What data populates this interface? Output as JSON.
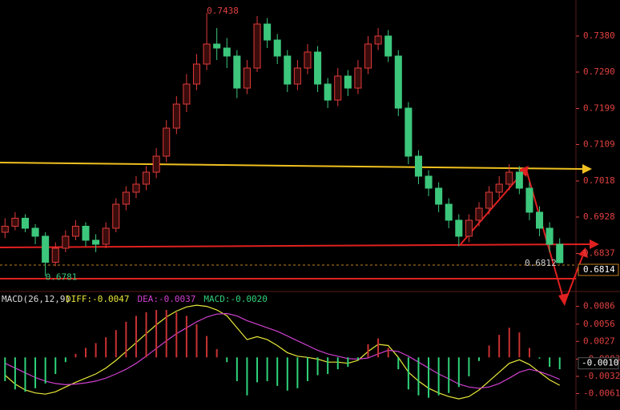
{
  "chart_data": [
    {
      "type": "candlestick",
      "up_color": "#e03a3a",
      "down_color": "#3cc77c",
      "ylim": [
        0.675,
        0.747
      ],
      "yticks": [
        {
          "value": 0.738,
          "label": "0.7380"
        },
        {
          "value": 0.729,
          "label": "0.7290"
        },
        0.7199,
        0.7109,
        0.7018,
        0.6928,
        0.6837
      ],
      "open": [
        0.689,
        0.6905,
        0.6925,
        0.69,
        0.688,
        0.6815,
        0.685,
        0.688,
        0.6905,
        0.687,
        0.686,
        0.69,
        0.696,
        0.699,
        0.701,
        0.704,
        0.708,
        0.715,
        0.721,
        0.726,
        0.731,
        0.736,
        0.735,
        0.733,
        0.725,
        0.73,
        0.741,
        0.737,
        0.733,
        0.726,
        0.73,
        0.734,
        0.726,
        0.722,
        0.728,
        0.725,
        0.73,
        0.736,
        0.738,
        0.733,
        0.72,
        0.708,
        0.703,
        0.7,
        0.696,
        0.692,
        0.688,
        0.692,
        0.695,
        0.699,
        0.701,
        0.704,
        0.7,
        0.694,
        0.69,
        0.686
      ],
      "high": [
        0.6925,
        0.694,
        0.6935,
        0.691,
        0.689,
        0.6865,
        0.6895,
        0.692,
        0.6915,
        0.6885,
        0.6915,
        0.6975,
        0.7005,
        0.703,
        0.7055,
        0.71,
        0.717,
        0.723,
        0.7285,
        0.7335,
        0.7438,
        0.74,
        0.7375,
        0.7345,
        0.732,
        0.743,
        0.7425,
        0.7385,
        0.7345,
        0.732,
        0.736,
        0.7355,
        0.7275,
        0.73,
        0.7295,
        0.732,
        0.738,
        0.74,
        0.7395,
        0.7345,
        0.7215,
        0.7095,
        0.7045,
        0.7015,
        0.6975,
        0.6935,
        0.6935,
        0.6965,
        0.7005,
        0.703,
        0.706,
        0.7055,
        0.7015,
        0.6955,
        0.6915,
        0.6875
      ],
      "low": [
        0.6875,
        0.6895,
        0.689,
        0.686,
        0.6781,
        0.6805,
        0.684,
        0.687,
        0.6855,
        0.684,
        0.685,
        0.689,
        0.6945,
        0.6975,
        0.6995,
        0.7025,
        0.7065,
        0.7135,
        0.719,
        0.7245,
        0.7295,
        0.732,
        0.73,
        0.7225,
        0.7235,
        0.729,
        0.735,
        0.731,
        0.724,
        0.7245,
        0.7285,
        0.724,
        0.72,
        0.7205,
        0.723,
        0.7235,
        0.7285,
        0.7345,
        0.7315,
        0.718,
        0.706,
        0.701,
        0.698,
        0.694,
        0.69,
        0.6855,
        0.6865,
        0.6905,
        0.6935,
        0.6975,
        0.6995,
        0.6985,
        0.692,
        0.688,
        0.684,
        0.6812
      ],
      "close": [
        0.6905,
        0.6925,
        0.69,
        0.688,
        0.6815,
        0.685,
        0.688,
        0.6905,
        0.687,
        0.686,
        0.69,
        0.696,
        0.699,
        0.701,
        0.704,
        0.708,
        0.715,
        0.721,
        0.726,
        0.731,
        0.736,
        0.735,
        0.733,
        0.725,
        0.73,
        0.741,
        0.737,
        0.733,
        0.726,
        0.73,
        0.734,
        0.726,
        0.722,
        0.728,
        0.725,
        0.73,
        0.736,
        0.738,
        0.733,
        0.72,
        0.708,
        0.703,
        0.7,
        0.696,
        0.692,
        0.688,
        0.692,
        0.695,
        0.699,
        0.701,
        0.704,
        0.7,
        0.694,
        0.69,
        0.686,
        0.6814
      ],
      "high_label": "0.7438",
      "low_label": "0.6781",
      "last_low_label": "0.6812",
      "price_marker": {
        "value": 0.6814,
        "label": "0.6814"
      }
    },
    {
      "type": "macd",
      "title": "MACD(26,12,9)",
      "ylim": [
        -0.0086,
        0.0103
      ],
      "yticks": [
        0.0086,
        0.0056,
        0.0027,
        -0.0003,
        -0.0032,
        -0.0061
      ],
      "marker": {
        "value": -0.001,
        "label": "-0.0010"
      },
      "series": [
        {
          "name": "DIFF:-0.0047",
          "kind": "line",
          "color": "#e8e83a",
          "values": [
            -0.003,
            -0.0045,
            -0.0055,
            -0.006,
            -0.0062,
            -0.0058,
            -0.005,
            -0.0042,
            -0.0035,
            -0.0028,
            -0.0018,
            -0.0005,
            0.001,
            0.0025,
            0.004,
            0.0055,
            0.0068,
            0.0078,
            0.0085,
            0.0088,
            0.0086,
            0.008,
            0.007,
            0.005,
            0.003,
            0.0035,
            0.003,
            0.002,
            0.0008,
            0.0002,
            0.0,
            -0.0003,
            -0.0008,
            -0.0008,
            -0.001,
            -0.0005,
            0.001,
            0.0022,
            0.002,
            0.0,
            -0.0025,
            -0.004,
            -0.0052,
            -0.006,
            -0.0066,
            -0.007,
            -0.0066,
            -0.0055,
            -0.004,
            -0.0025,
            -0.001,
            -0.0004,
            -0.0012,
            -0.0025,
            -0.0038,
            -0.0047
          ]
        },
        {
          "name": "DEA:-0.0037",
          "kind": "line",
          "color": "#d040d0",
          "values": [
            -0.001,
            -0.0018,
            -0.0026,
            -0.0034,
            -0.004,
            -0.0044,
            -0.0046,
            -0.0045,
            -0.0043,
            -0.004,
            -0.0035,
            -0.0028,
            -0.002,
            -0.001,
            0.0002,
            0.0015,
            0.0028,
            0.004,
            0.005,
            0.006,
            0.0068,
            0.0073,
            0.0074,
            0.007,
            0.0062,
            0.0056,
            0.005,
            0.0044,
            0.0036,
            0.0028,
            0.002,
            0.0012,
            0.0006,
            0.0002,
            -0.0002,
            -0.0003,
            -0.0001,
            0.0006,
            0.0012,
            0.001,
            0.0002,
            -0.0008,
            -0.0018,
            -0.0028,
            -0.0036,
            -0.0045,
            -0.005,
            -0.0052,
            -0.005,
            -0.0044,
            -0.0035,
            -0.0025,
            -0.002,
            -0.0024,
            -0.003,
            -0.0037
          ]
        },
        {
          "name": "MACD:-0.0020",
          "kind": "bar",
          "color": "#2fd37a",
          "up_color": "#c83232",
          "values": [
            -0.004,
            -0.0054,
            -0.0058,
            -0.0052,
            -0.0044,
            -0.0028,
            -0.0008,
            0.0006,
            0.0016,
            0.0024,
            0.0034,
            0.0046,
            0.006,
            0.007,
            0.0076,
            0.008,
            0.008,
            0.0076,
            0.007,
            0.0056,
            0.0036,
            0.0014,
            -0.0008,
            -0.004,
            -0.0064,
            -0.0042,
            -0.004,
            -0.0048,
            -0.0056,
            -0.0052,
            -0.004,
            -0.003,
            -0.0028,
            -0.002,
            -0.0016,
            -0.0004,
            0.0022,
            0.0032,
            0.0016,
            -0.002,
            -0.0054,
            -0.0064,
            -0.0068,
            -0.0064,
            -0.006,
            -0.005,
            -0.0032,
            -0.0006,
            0.002,
            0.0038,
            0.005,
            0.0042,
            0.0016,
            -0.0002,
            -0.0016,
            -0.002
          ]
        }
      ]
    }
  ]
}
